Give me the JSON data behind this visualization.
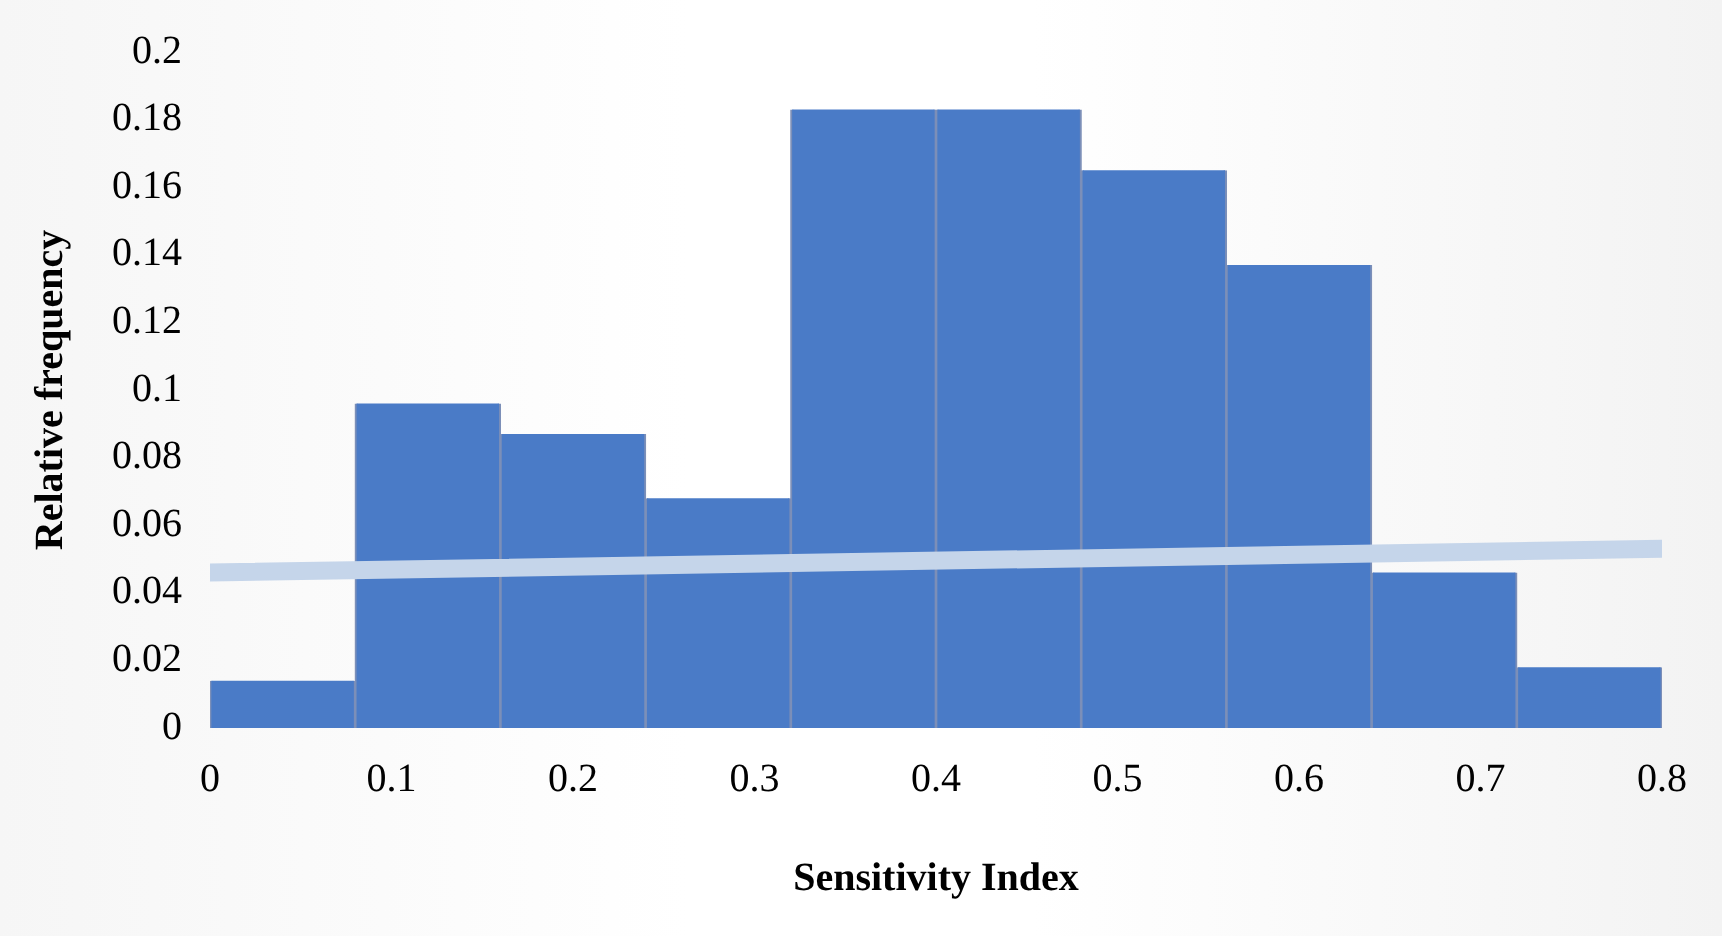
{
  "chart_data": {
    "type": "histogram",
    "xlabel": "Sensitivity Index",
    "ylabel": "Relative frequency",
    "bins": [
      0,
      0.08,
      0.16,
      0.24,
      0.32,
      0.4,
      0.48,
      0.56,
      0.64,
      0.72,
      0.8
    ],
    "values": [
      0.014,
      0.096,
      0.087,
      0.068,
      0.183,
      0.183,
      0.165,
      0.137,
      0.046,
      0.018
    ],
    "color": "#4a7bc7",
    "series": [
      {
        "type": "line",
        "x": [
          0,
          0.8
        ],
        "values": [
          0.046,
          0.053
        ],
        "color": "#c5d5ea"
      }
    ],
    "xlim": [
      0,
      0.8
    ],
    "xticks": [
      0,
      0.1,
      0.2,
      0.3,
      0.4,
      0.5,
      0.6,
      0.7,
      0.8
    ],
    "ylim": [
      0,
      0.2
    ],
    "yticks": [
      0,
      0.02,
      0.04,
      0.06,
      0.08,
      0.1,
      0.12,
      0.14,
      0.16,
      0.18,
      0.2
    ],
    "grid": false,
    "legend": false
  }
}
